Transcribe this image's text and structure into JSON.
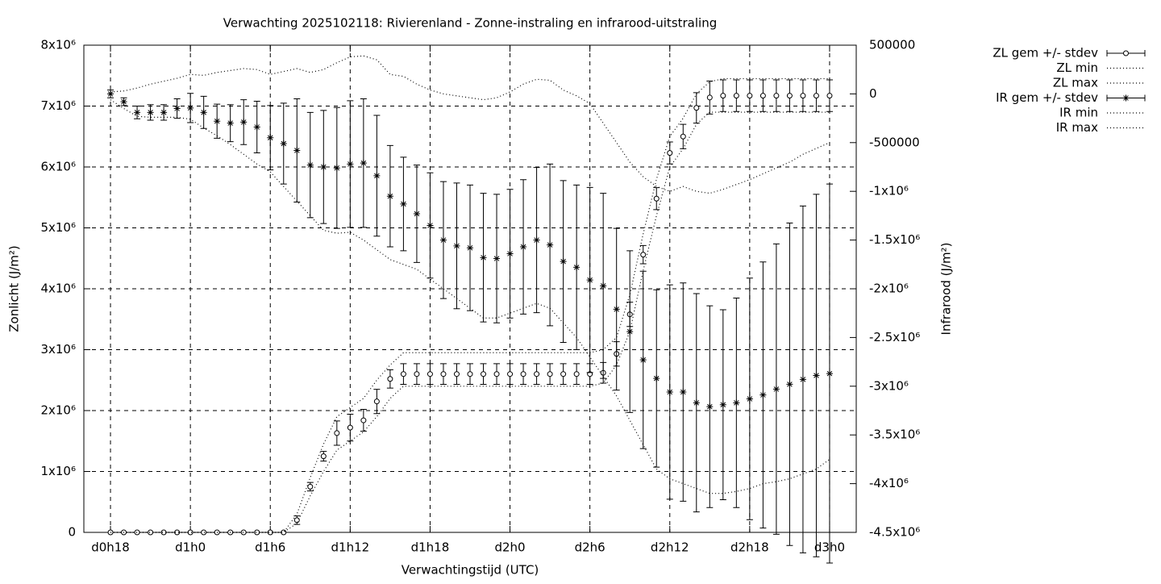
{
  "chart_data": {
    "type": "line",
    "title": "Verwachting 2025102118: Rivierenland - Zonne-instraling en infrarood-uitstraling",
    "xlabel": "Verwachtingstijd (UTC)",
    "ylabel": "Zonlicht (J/m²)",
    "y2label": "Infrarood (J/m²)",
    "x": [
      18,
      19,
      20,
      21,
      22,
      23,
      24,
      25,
      26,
      27,
      28,
      29,
      30,
      31,
      32,
      33,
      34,
      35,
      36,
      37,
      38,
      39,
      40,
      41,
      42,
      43,
      44,
      45,
      46,
      47,
      48,
      49,
      50,
      51,
      52,
      53,
      54,
      55,
      56,
      57,
      58,
      59,
      60,
      61,
      62,
      63,
      64,
      65,
      66,
      67,
      68,
      69,
      70,
      71,
      72
    ],
    "xlim": [
      16,
      74
    ],
    "xticks": [
      {
        "value": 18,
        "label": "d0h18"
      },
      {
        "value": 24,
        "label": "d1h0"
      },
      {
        "value": 30,
        "label": "d1h6"
      },
      {
        "value": 36,
        "label": "d1h12"
      },
      {
        "value": 42,
        "label": "d1h18"
      },
      {
        "value": 48,
        "label": "d2h0"
      },
      {
        "value": 54,
        "label": "d2h6"
      },
      {
        "value": 60,
        "label": "d2h12"
      },
      {
        "value": 66,
        "label": "d2h18"
      },
      {
        "value": 72,
        "label": "d3h0"
      }
    ],
    "ylim": [
      0,
      8000000
    ],
    "yticks": [
      0,
      {
        "value": 1000000,
        "label": "1x10⁶"
      },
      {
        "value": 2000000,
        "label": "2x10⁶"
      },
      {
        "value": 3000000,
        "label": "3x10⁶"
      },
      {
        "value": 4000000,
        "label": "4x10⁶"
      },
      {
        "value": 5000000,
        "label": "5x10⁶"
      },
      {
        "value": 6000000,
        "label": "6x10⁶"
      },
      {
        "value": 7000000,
        "label": "7x10⁶"
      },
      {
        "value": 8000000,
        "label": "8x10⁶"
      }
    ],
    "y2lim": [
      -4500000,
      500000
    ],
    "y2ticks": [
      500000,
      0,
      -500000,
      {
        "value": -1000000,
        "label": "-1x10⁶"
      },
      {
        "value": -1500000,
        "label": "-1.5x10⁶"
      },
      {
        "value": -2000000,
        "label": "-2x10⁶"
      },
      {
        "value": -2500000,
        "label": "-2.5x10⁶"
      },
      {
        "value": -3000000,
        "label": "-3x10⁶"
      },
      {
        "value": -3500000,
        "label": "-3.5x10⁶"
      },
      {
        "value": -4000000,
        "label": "-4x10⁶"
      },
      {
        "value": -4500000,
        "label": "-4.5x10⁶"
      }
    ],
    "grid": true,
    "legend": "outside-right-top",
    "series": [
      {
        "name": "ZL gem +/- stdev",
        "color": "#000000",
        "style": "errorbars",
        "marker": "circle",
        "values": [
          0,
          0,
          0,
          0,
          0,
          0,
          0,
          0,
          0,
          0,
          0,
          0,
          0,
          0,
          200000,
          750000,
          1250000,
          1630000,
          1720000,
          1840000,
          2150000,
          2520000,
          2600000,
          2600000,
          2600000,
          2600000,
          2600000,
          2600000,
          2600000,
          2600000,
          2600000,
          2600000,
          2600000,
          2600000,
          2600000,
          2600000,
          2600000,
          2620000,
          2930000,
          3580000,
          4560000,
          5480000,
          6230000,
          6500000,
          6970000,
          7140000,
          7170000,
          7170000,
          7170000,
          7170000,
          7170000,
          7170000,
          7170000,
          7170000,
          7170000
        ],
        "errors": [
          0,
          0,
          0,
          0,
          0,
          0,
          0,
          0,
          0,
          0,
          0,
          0,
          0,
          0,
          70000,
          70000,
          80000,
          200000,
          220000,
          180000,
          200000,
          150000,
          170000,
          170000,
          170000,
          170000,
          170000,
          170000,
          170000,
          170000,
          170000,
          170000,
          170000,
          170000,
          170000,
          170000,
          170000,
          170000,
          200000,
          200000,
          150000,
          180000,
          180000,
          200000,
          250000,
          270000,
          260000,
          260000,
          260000,
          260000,
          260000,
          260000,
          260000,
          260000,
          260000
        ]
      },
      {
        "name": "ZL min",
        "color": "#000000",
        "style": "dotted",
        "values": [
          0,
          0,
          0,
          0,
          0,
          0,
          0,
          0,
          0,
          0,
          0,
          0,
          0,
          0,
          150000,
          600000,
          1000000,
          1350000,
          1500000,
          1650000,
          1900000,
          2200000,
          2400000,
          2400000,
          2400000,
          2400000,
          2400000,
          2400000,
          2400000,
          2400000,
          2400000,
          2400000,
          2400000,
          2400000,
          2400000,
          2400000,
          2400000,
          2450000,
          2750000,
          3300000,
          4300000,
          5200000,
          6000000,
          6300000,
          6700000,
          6900000,
          6900000,
          6900000,
          6900000,
          6900000,
          6900000,
          6900000,
          6900000,
          6900000,
          6900000
        ]
      },
      {
        "name": "ZL max",
        "color": "#000000",
        "style": "dotted",
        "values": [
          0,
          0,
          0,
          0,
          0,
          0,
          0,
          0,
          0,
          0,
          0,
          0,
          0,
          0,
          300000,
          900000,
          1450000,
          1900000,
          2050000,
          2200000,
          2500000,
          2750000,
          2950000,
          2950000,
          2950000,
          2950000,
          2950000,
          2950000,
          2950000,
          2950000,
          2950000,
          2950000,
          2950000,
          2950000,
          2950000,
          2950000,
          2950000,
          3000000,
          3200000,
          3900000,
          4900000,
          5800000,
          6500000,
          6800000,
          7200000,
          7400000,
          7450000,
          7450000,
          7450000,
          7450000,
          7450000,
          7450000,
          7450000,
          7450000,
          7450000
        ]
      },
      {
        "name": "IR gem +/- stdev",
        "color": "#000000",
        "style": "errorbars",
        "marker": "star",
        "axis": "y2",
        "values": [
          0,
          -80000,
          -190000,
          -190000,
          -190000,
          -150000,
          -145000,
          -190000,
          -280000,
          -300000,
          -290000,
          -340000,
          -450000,
          -510000,
          -580000,
          -730000,
          -750000,
          -760000,
          -720000,
          -710000,
          -840000,
          -1050000,
          -1130000,
          -1230000,
          -1350000,
          -1500000,
          -1560000,
          -1580000,
          -1680000,
          -1690000,
          -1640000,
          -1570000,
          -1500000,
          -1550000,
          -1720000,
          -1780000,
          -1910000,
          -1970000,
          -2210000,
          -2440000,
          -2730000,
          -2920000,
          -3060000,
          -3060000,
          -3170000,
          -3210000,
          -3190000,
          -3170000,
          -3130000,
          -3090000,
          -3030000,
          -2980000,
          -2930000,
          -2890000,
          -2870000
        ],
        "errors": [
          40000,
          40000,
          65000,
          80000,
          80000,
          100000,
          150000,
          165000,
          175000,
          190000,
          230000,
          265000,
          330000,
          415000,
          530000,
          540000,
          580000,
          620000,
          650000,
          660000,
          620000,
          520000,
          480000,
          500000,
          540000,
          600000,
          645000,
          645000,
          660000,
          660000,
          660000,
          690000,
          745000,
          830000,
          830000,
          845000,
          950000,
          950000,
          830000,
          830000,
          910000,
          910000,
          1100000,
          1120000,
          1120000,
          1035000,
          975000,
          1075000,
          1240000,
          1365000,
          1490000,
          1655000,
          1780000,
          1860000,
          1945000
        ]
      },
      {
        "name": "IR min",
        "color": "#000000",
        "style": "dotted",
        "axis": "y2",
        "values": [
          -60000,
          -150000,
          -230000,
          -240000,
          -240000,
          -240000,
          -260000,
          -350000,
          -430000,
          -520000,
          -620000,
          -720000,
          -800000,
          -950000,
          -1100000,
          -1250000,
          -1400000,
          -1430000,
          -1420000,
          -1500000,
          -1600000,
          -1700000,
          -1750000,
          -1800000,
          -1900000,
          -2000000,
          -2100000,
          -2200000,
          -2300000,
          -2300000,
          -2250000,
          -2200000,
          -2150000,
          -2200000,
          -2350000,
          -2500000,
          -2700000,
          -2900000,
          -3100000,
          -3350000,
          -3600000,
          -3850000,
          -3950000,
          -4000000,
          -4050000,
          -4100000,
          -4100000,
          -4080000,
          -4050000,
          -4000000,
          -3980000,
          -3950000,
          -3900000,
          -3850000,
          -3750000
        ]
      },
      {
        "name": "IR max",
        "color": "#000000",
        "style": "dotted",
        "axis": "y2",
        "values": [
          20000,
          30000,
          60000,
          100000,
          130000,
          160000,
          200000,
          190000,
          220000,
          240000,
          260000,
          250000,
          200000,
          230000,
          260000,
          220000,
          250000,
          320000,
          380000,
          390000,
          350000,
          200000,
          180000,
          100000,
          40000,
          0,
          -20000,
          -40000,
          -60000,
          -40000,
          20000,
          100000,
          150000,
          140000,
          40000,
          -20000,
          -100000,
          -300000,
          -500000,
          -700000,
          -850000,
          -950000,
          -1000000,
          -950000,
          -1000000,
          -1020000,
          -980000,
          -930000,
          -880000,
          -820000,
          -760000,
          -700000,
          -620000,
          -560000,
          -500000
        ]
      }
    ]
  }
}
